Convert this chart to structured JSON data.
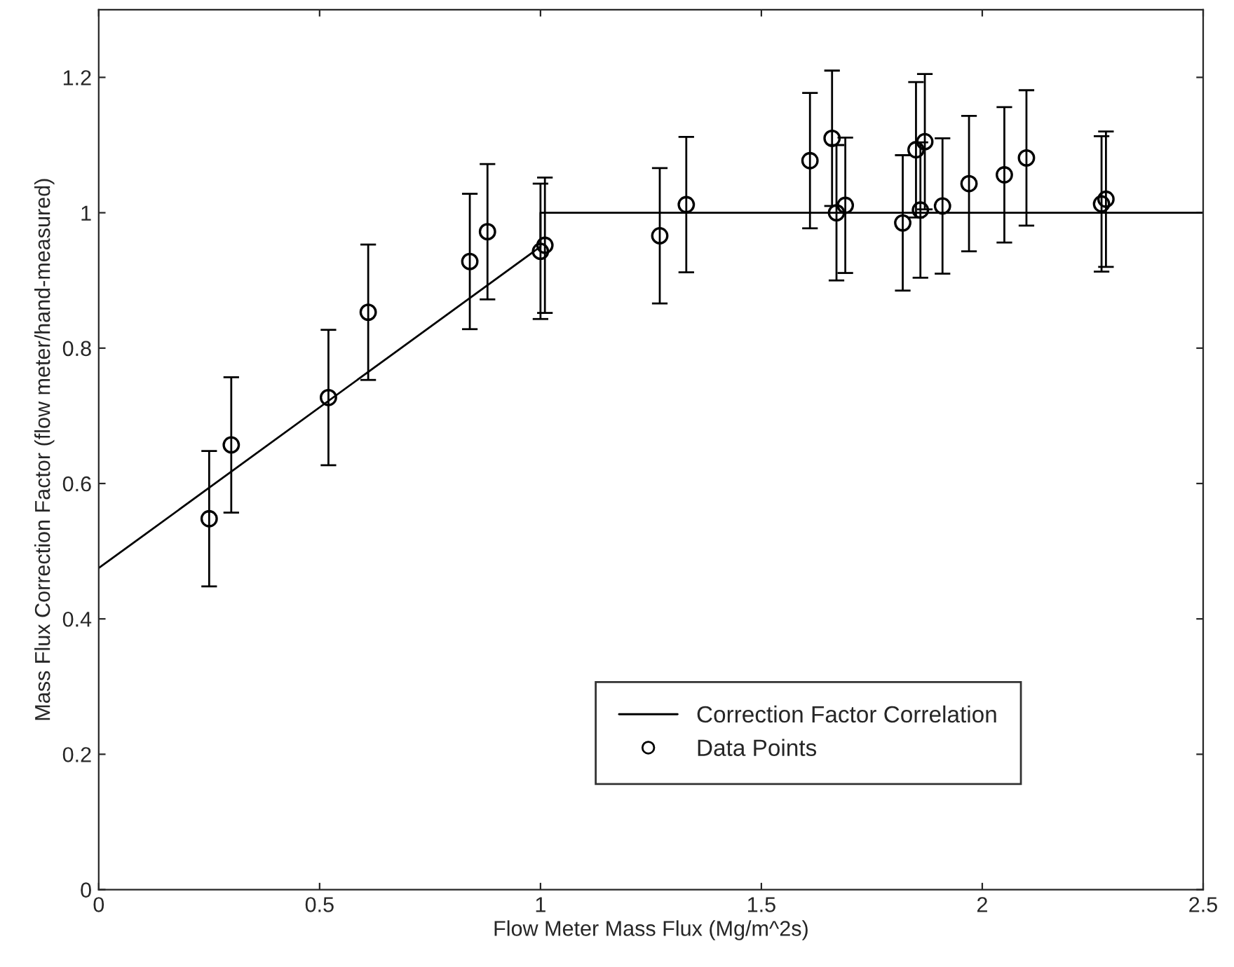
{
  "chart_data": {
    "type": "scatter",
    "xlabel": "Flow Meter Mass Flux (Mg/m^2s)",
    "ylabel": "Mass Flux Correction Factor (flow meter/hand-measured)",
    "xlim": [
      0,
      2.5
    ],
    "xticks": [
      0,
      0.5,
      1,
      1.5,
      2,
      2.5
    ],
    "ylim": [
      0,
      1.3
    ],
    "yticks": [
      0,
      0.2,
      0.4,
      0.6,
      0.8,
      1,
      1.2
    ],
    "grid": false,
    "legend": "bottom right",
    "series": [
      {
        "name": "Correction Factor Correlation",
        "type": "line",
        "color": "#000000",
        "marker": "none",
        "line_style": "solid",
        "x": [
          0,
          1,
          1,
          2.5
        ],
        "values": [
          0.475,
          0.95,
          1,
          1
        ]
      },
      {
        "name": "Data Points",
        "color": "#000000",
        "marker": "circle",
        "x": [
          0.25,
          0.3,
          0.52,
          0.61,
          0.84,
          0.88,
          1.0,
          1.01,
          1.27,
          1.33,
          1.61,
          1.66,
          1.67,
          1.69,
          1.82,
          1.85,
          1.86,
          1.87,
          1.91,
          1.97,
          2.05,
          2.1,
          2.27,
          2.28
        ],
        "values": [
          0.548,
          0.657,
          0.727,
          0.853,
          0.928,
          0.972,
          0.943,
          0.952,
          0.966,
          1.012,
          1.077,
          1.11,
          1.0,
          1.011,
          0.985,
          1.093,
          1.004,
          1.105,
          1.01,
          1.043,
          1.056,
          1.081,
          1.013,
          1.02
        ],
        "errors": [
          0.1,
          0.1,
          0.1,
          0.1,
          0.1,
          0.1,
          0.1,
          0.1,
          0.1,
          0.1,
          0.1,
          0.1,
          0.1,
          0.1,
          0.1,
          0.1,
          0.1,
          0.1,
          0.1,
          0.1,
          0.1,
          0.1,
          0.1,
          0.1
        ]
      }
    ]
  }
}
